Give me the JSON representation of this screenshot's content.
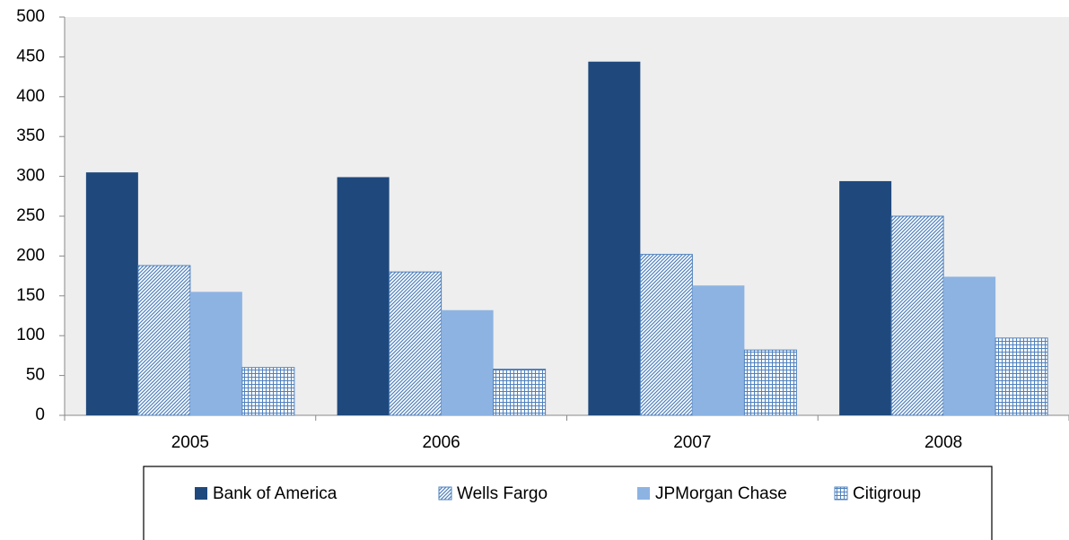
{
  "chart_data": {
    "type": "bar",
    "categories": [
      "2005",
      "2006",
      "2007",
      "2008"
    ],
    "series": [
      {
        "name": "Bank of America",
        "color": "#1f497d",
        "pattern": "solid",
        "values": [
          305,
          299,
          444,
          294
        ]
      },
      {
        "name": "Wells Fargo",
        "color": "#4f81bd",
        "pattern": "diagonal",
        "values": [
          188,
          180,
          202,
          250
        ]
      },
      {
        "name": "JPMorgan Chase",
        "color": "#8db3e2",
        "pattern": "solid",
        "values": [
          155,
          132,
          163,
          174
        ]
      },
      {
        "name": "Citigroup",
        "color": "#4f81bd",
        "pattern": "grid",
        "values": [
          60,
          58,
          82,
          97
        ]
      }
    ],
    "ylim": [
      0,
      500
    ],
    "yticks": [
      0,
      50,
      100,
      150,
      200,
      250,
      300,
      350,
      400,
      450,
      500
    ],
    "grid": false,
    "legend": "bottom"
  }
}
